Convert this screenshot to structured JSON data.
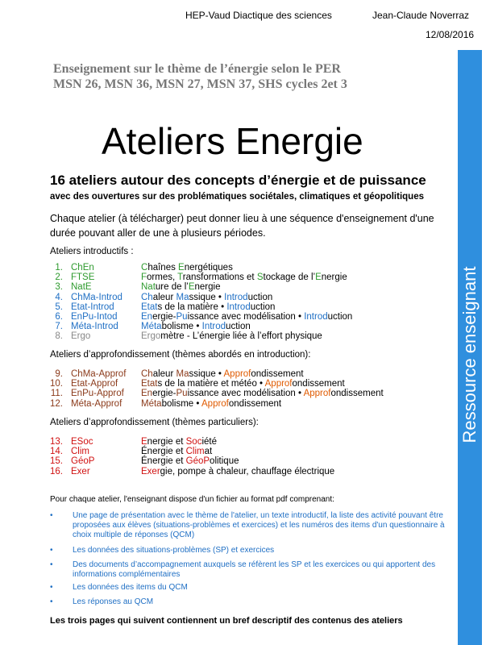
{
  "header": {
    "institution": "HEP-Vaud Diactique des sciences",
    "author": "Jean-Claude Noverraz",
    "date": "12/08/2016"
  },
  "sidebar": "Ressource enseignant",
  "subject": [
    "Enseignement  sur le thème de l’énergie selon le PER",
    "MSN 26, MSN 36, MSN 27, MSN 37, SHS cycles 2et 3"
  ],
  "title": "Ateliers Energie",
  "heading": "16 ateliers autour des concepts d’énergie et de puissance",
  "subheading": "avec des ouvertures sur des problématiques sociétales, climatiques et géopolitiques",
  "intro": "Chaque atelier (à télécharger) peut donner lieu à une séquence d'enseignement d'une durée pouvant aller de une à plusieurs périodes.",
  "sections": [
    {
      "label": "Ateliers introductifs :",
      "rows": [
        {
          "num": "1.",
          "code": "ChEn",
          "color": "#2e9a2e",
          "parts": [
            {
              "text": "C",
              "color": "#2e9a2e"
            },
            {
              "text": "haînes "
            },
            {
              "text": "E",
              "color": "#2e9a2e"
            },
            {
              "text": "nergétiques"
            }
          ]
        },
        {
          "num": "2.",
          "code": "FTSE",
          "color": "#2e9a2e",
          "parts": [
            {
              "text": "F",
              "color": "#2e9a2e"
            },
            {
              "text": "ormes, "
            },
            {
              "text": "T",
              "color": "#2e9a2e"
            },
            {
              "text": "ransformations et "
            },
            {
              "text": "S",
              "color": "#2e9a2e"
            },
            {
              "text": "tockage de l’"
            },
            {
              "text": "E",
              "color": "#2e9a2e"
            },
            {
              "text": "nergie"
            }
          ]
        },
        {
          "num": "3.",
          "code": "NatE",
          "color": "#2e9a2e",
          "parts": [
            {
              "text": "Nat",
              "color": "#2e9a2e"
            },
            {
              "text": "ure de l’"
            },
            {
              "text": "E",
              "color": "#2e9a2e"
            },
            {
              "text": "nergie"
            }
          ]
        },
        {
          "num": "4.",
          "code": "ChMa-Introd",
          "color": "#1f6fc4",
          "parts": [
            {
              "text": "Ch",
              "color": "#1f6fc4"
            },
            {
              "text": "aleur "
            },
            {
              "text": "Ma",
              "color": "#1f6fc4"
            },
            {
              "text": "ssique • "
            },
            {
              "text": "Introd",
              "color": "#1f6fc4"
            },
            {
              "text": "uction"
            }
          ]
        },
        {
          "num": "5.",
          "code": "Etat-Introd",
          "color": "#1f6fc4",
          "parts": [
            {
              "text": "Etat",
              "color": "#1f6fc4"
            },
            {
              "text": "s de la matière • "
            },
            {
              "text": "Introd",
              "color": "#1f6fc4"
            },
            {
              "text": "uction"
            }
          ]
        },
        {
          "num": "6.",
          "code": "EnPu-Intod",
          "color": "#1f6fc4",
          "parts": [
            {
              "text": "En",
              "color": "#1f6fc4"
            },
            {
              "text": "ergie-"
            },
            {
              "text": "Pu",
              "color": "#1f6fc4"
            },
            {
              "text": "issance avec modélisation • "
            },
            {
              "text": "Introd",
              "color": "#1f6fc4"
            },
            {
              "text": "uction"
            }
          ]
        },
        {
          "num": "7.",
          "code": "Méta-Introd",
          "color": "#1f6fc4",
          "parts": [
            {
              "text": "Méta",
              "color": "#1f6fc4"
            },
            {
              "text": "bolisme • "
            },
            {
              "text": "Introd",
              "color": "#1f6fc4"
            },
            {
              "text": "uction"
            }
          ]
        },
        {
          "num": "8.",
          "code": "Ergo",
          "color": "#888888",
          "parts": [
            {
              "text": "Ergo",
              "color": "#888888"
            },
            {
              "text": "mètre - L’énergie liée à l’effort physique"
            }
          ]
        }
      ]
    },
    {
      "label": "Ateliers d’approfondissement (thèmes abordés en introduction):",
      "rows": [
        {
          "num": "9.",
          "code": "ChMa-Approf",
          "color": "#8b3a1a",
          "parts": [
            {
              "text": "Ch",
              "color": "#8b3a1a"
            },
            {
              "text": "aleur "
            },
            {
              "text": "Ma",
              "color": "#8b3a1a"
            },
            {
              "text": "ssique • "
            },
            {
              "text": "Approf",
              "color": "#e05a00"
            },
            {
              "text": "ondissement"
            }
          ]
        },
        {
          "num": "10.",
          "code": "Etat-Approf",
          "color": "#8b3a1a",
          "parts": [
            {
              "text": "Etat",
              "color": "#8b3a1a"
            },
            {
              "text": "s de la matière et météo • "
            },
            {
              "text": "Approf",
              "color": "#e05a00"
            },
            {
              "text": "ondissement"
            }
          ]
        },
        {
          "num": "11.",
          "code": "EnPu-Approf",
          "color": "#8b3a1a",
          "parts": [
            {
              "text": "En",
              "color": "#8b3a1a"
            },
            {
              "text": "ergie-"
            },
            {
              "text": "Pu",
              "color": "#8b3a1a"
            },
            {
              "text": "issance avec modélisation • "
            },
            {
              "text": "Approf",
              "color": "#e05a00"
            },
            {
              "text": "ondissement"
            }
          ]
        },
        {
          "num": "12.",
          "code": "Méta-Approf",
          "color": "#8b3a1a",
          "parts": [
            {
              "text": "Méta",
              "color": "#8b3a1a"
            },
            {
              "text": "bolisme • "
            },
            {
              "text": "Approf",
              "color": "#e05a00"
            },
            {
              "text": "ondissement"
            }
          ]
        }
      ]
    },
    {
      "label": "Ateliers d’approfondissement (thèmes particuliers):",
      "rows": [
        {
          "num": "13.",
          "code": "ESoc",
          "color": "#d01010",
          "parts": [
            {
              "text": "E",
              "color": "#d01010"
            },
            {
              "text": "nergie et "
            },
            {
              "text": "Soc",
              "color": "#d01010"
            },
            {
              "text": "iété"
            }
          ]
        },
        {
          "num": "14.",
          "code": "Clim",
          "color": "#d01010",
          "parts": [
            {
              "text": "É"
            },
            {
              "text": "nergie et "
            },
            {
              "text": "Clim",
              "color": "#d01010"
            },
            {
              "text": "at"
            }
          ]
        },
        {
          "num": "15.",
          "code": "GéoP",
          "color": "#d01010",
          "parts": [
            {
              "text": "É"
            },
            {
              "text": "nergie et "
            },
            {
              "text": "GéoP",
              "color": "#d01010"
            },
            {
              "text": "olitique"
            }
          ]
        },
        {
          "num": "16.",
          "code": "Exer",
          "color": "#d01010",
          "parts": [
            {
              "text": "Exer",
              "color": "#d01010"
            },
            {
              "text": "gie, pompe à chaleur, chauffage électrique"
            }
          ]
        }
      ]
    }
  ],
  "files": {
    "intro": "Pour chaque atelier, l'enseignant dispose d'un fichier au format pdf comprenant:",
    "items": [
      "Une page de présentation avec le thème de l'atelier, un texte introductif, la liste des activité pouvant être proposées aux élèves (situations-problèmes et exercices) et les numéros des items d'un questionnaire à choix multiple de réponses (QCM)",
      "Les données des situations-problèmes (SP) et exercices",
      "Des documents d’accompagnement auxquels se réfèrent les SP et les exercices ou qui apportent des informations complémentaires",
      "Les données des items du QCM",
      "Les réponses au QCM"
    ]
  },
  "footer": "Les trois pages qui suivent contiennent un bref descriptif des contenus des ateliers"
}
